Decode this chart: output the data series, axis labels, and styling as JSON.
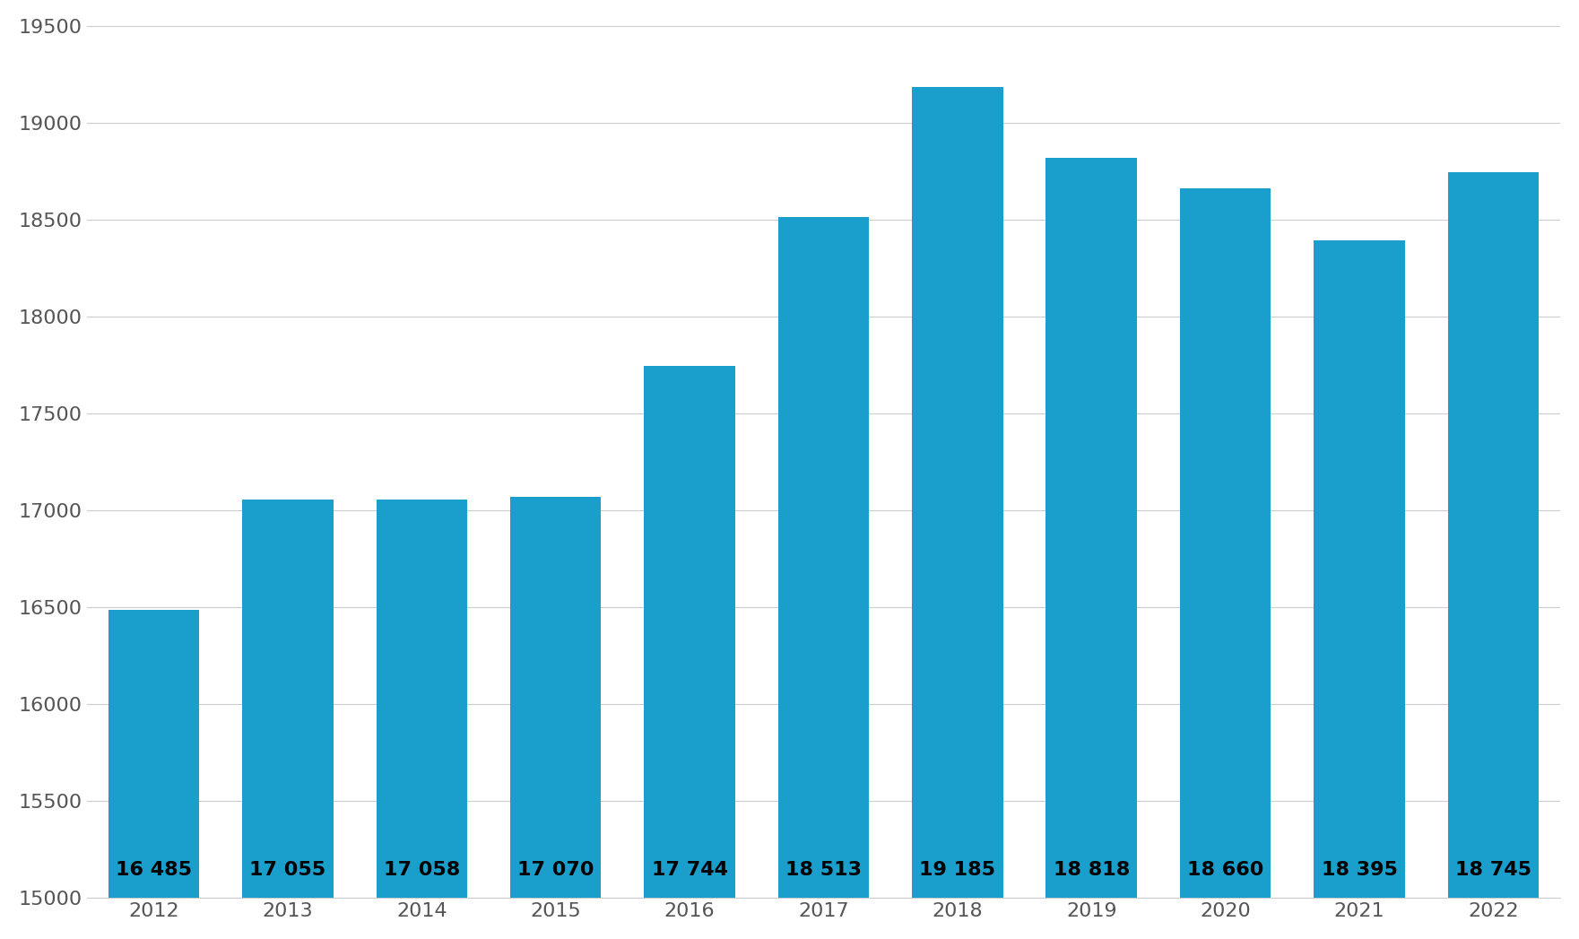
{
  "years": [
    2012,
    2013,
    2014,
    2015,
    2016,
    2017,
    2018,
    2019,
    2020,
    2021,
    2022
  ],
  "values": [
    16485,
    17055,
    17058,
    17070,
    17744,
    18513,
    19185,
    18818,
    18660,
    18395,
    18745
  ],
  "bar_color": "#1a9fcc",
  "background_color": "#ffffff",
  "ylim": [
    15000,
    19500
  ],
  "yticks": [
    15000,
    15500,
    16000,
    16500,
    17000,
    17500,
    18000,
    18500,
    19000,
    19500
  ],
  "grid_color": "#cccccc",
  "label_color": "#000000",
  "label_fontsize": 16,
  "tick_fontsize": 16,
  "tick_color": "#555555",
  "bar_labels": [
    "16 485",
    "17 055",
    "17 058",
    "17 070",
    "17 744",
    "18 513",
    "19 185",
    "18 818",
    "18 660",
    "18 395",
    "18 745"
  ],
  "bar_bottom": 15000,
  "bar_width": 0.68
}
